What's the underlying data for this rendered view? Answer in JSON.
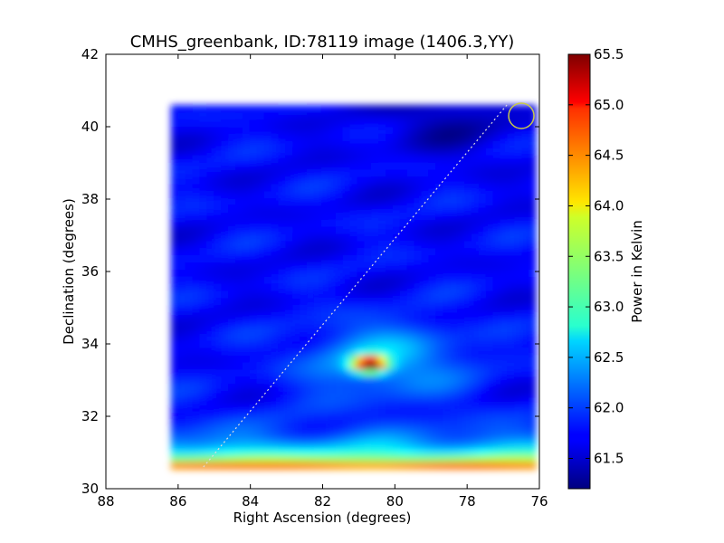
{
  "chart_data": {
    "type": "heatmap",
    "title": "CMHS_greenbank, ID:78119 image (1406.3,YY)",
    "xlabel": "Right Ascension (degrees)",
    "ylabel": "Declination (degrees)",
    "xlim": [
      88,
      76
    ],
    "ylim": [
      30,
      42
    ],
    "x_ticks": [
      88,
      86,
      84,
      82,
      80,
      78,
      76
    ],
    "y_ticks": [
      30,
      32,
      34,
      36,
      38,
      40,
      42
    ],
    "colorbar": {
      "label": "Power in Kelvin",
      "colormap": "jet",
      "vmin": 61.2,
      "vmax": 65.5,
      "ticks": [
        61.5,
        62.0,
        62.5,
        63.0,
        63.5,
        64.0,
        64.5,
        65.0,
        65.5
      ]
    },
    "map_extent": {
      "ra": [
        86.2,
        76.1
      ],
      "dec": [
        30.55,
        40.6
      ]
    },
    "features": {
      "background_level": 61.75,
      "hot_spot": {
        "ra": 80.7,
        "dec": 33.45,
        "peak": 65.2
      },
      "bottom_band_peak": 65.0,
      "beam_circle": {
        "ra": 76.5,
        "dec": 40.3
      },
      "scan_path": {
        "from": [
          85.3,
          30.6
        ],
        "to": [
          76.9,
          40.6
        ]
      }
    }
  }
}
